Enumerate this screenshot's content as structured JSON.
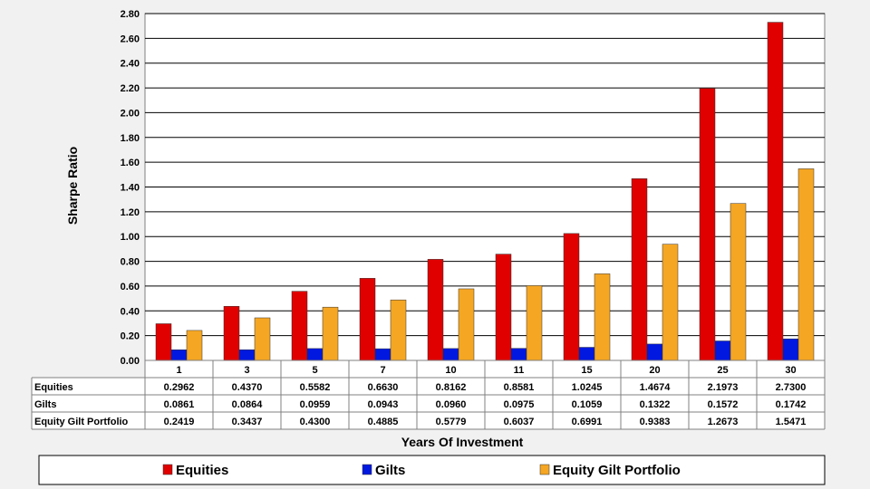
{
  "chart_data": {
    "type": "bar",
    "ylabel": "Sharpe Ratio",
    "xlabel": "Years Of Investment",
    "ylim": [
      0,
      2.8
    ],
    "y_tick_step": 0.2,
    "grid": true,
    "legend_position": "bottom",
    "categories": [
      "1",
      "3",
      "5",
      "7",
      "10",
      "11",
      "15",
      "20",
      "25",
      "30"
    ],
    "series": [
      {
        "name": "Equities",
        "color": "#e00000",
        "values": [
          0.2962,
          0.437,
          0.5582,
          0.663,
          0.8162,
          0.8581,
          1.0245,
          1.4674,
          2.1973,
          2.73
        ],
        "labels": [
          "0.2962",
          "0.4370",
          "0.5582",
          "0.6630",
          "0.8162",
          "0.8581",
          "1.0245",
          "1.4674",
          "2.1973",
          "2.7300"
        ]
      },
      {
        "name": "Gilts",
        "color": "#0018e0",
        "values": [
          0.0861,
          0.0864,
          0.0959,
          0.0943,
          0.096,
          0.0975,
          0.1059,
          0.1322,
          0.1572,
          0.1742
        ],
        "labels": [
          "0.0861",
          "0.0864",
          "0.0959",
          "0.0943",
          "0.0960",
          "0.0975",
          "0.1059",
          "0.1322",
          "0.1572",
          "0.1742"
        ]
      },
      {
        "name": "Equity Gilt Portfolio",
        "color": "#f5a623",
        "values": [
          0.2419,
          0.3437,
          0.43,
          0.4885,
          0.5779,
          0.6037,
          0.6991,
          0.9383,
          1.2673,
          1.5471
        ],
        "labels": [
          "0.2419",
          "0.3437",
          "0.4300",
          "0.4885",
          "0.5779",
          "0.6037",
          "0.6991",
          "0.9383",
          "1.2673",
          "1.5471"
        ]
      }
    ]
  }
}
